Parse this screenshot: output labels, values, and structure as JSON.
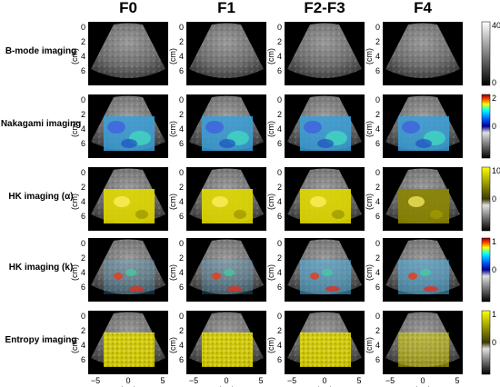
{
  "columns": [
    "F0",
    "F1",
    "F2-F3",
    "F4"
  ],
  "rows": [
    {
      "label": "B-mode imaging",
      "overlay": "none",
      "colorbar": {
        "type": "gray",
        "top": "40",
        "bottom": "0"
      }
    },
    {
      "label": "Nakagami imaging",
      "overlay": "jet",
      "colorbar": {
        "type": "jetgray",
        "top": "2",
        "mid": "0"
      }
    },
    {
      "label": "HK imaging (α)",
      "overlay": "yellow",
      "colorbar": {
        "type": "yellowgray",
        "top": "10",
        "mid": "0"
      }
    },
    {
      "label": "HK imaging (k)",
      "overlay": "jet-sparse",
      "colorbar": {
        "type": "jetgray",
        "top": "1",
        "mid": "0"
      }
    },
    {
      "label": "Entropy imaging",
      "overlay": "yellow-speckle",
      "colorbar": {
        "type": "yellowgray",
        "top": "1",
        "mid": "0"
      }
    }
  ],
  "y_axis": {
    "ticks": [
      "0",
      "2",
      "4",
      "6"
    ],
    "unit": "(cm)"
  },
  "x_axis": {
    "ticks": [
      "−5",
      "0",
      "5"
    ],
    "unit": "(cm)"
  },
  "colors": {
    "background": "#ffffff",
    "panel": "#000000",
    "overlay_yellow": "#e8e000"
  }
}
